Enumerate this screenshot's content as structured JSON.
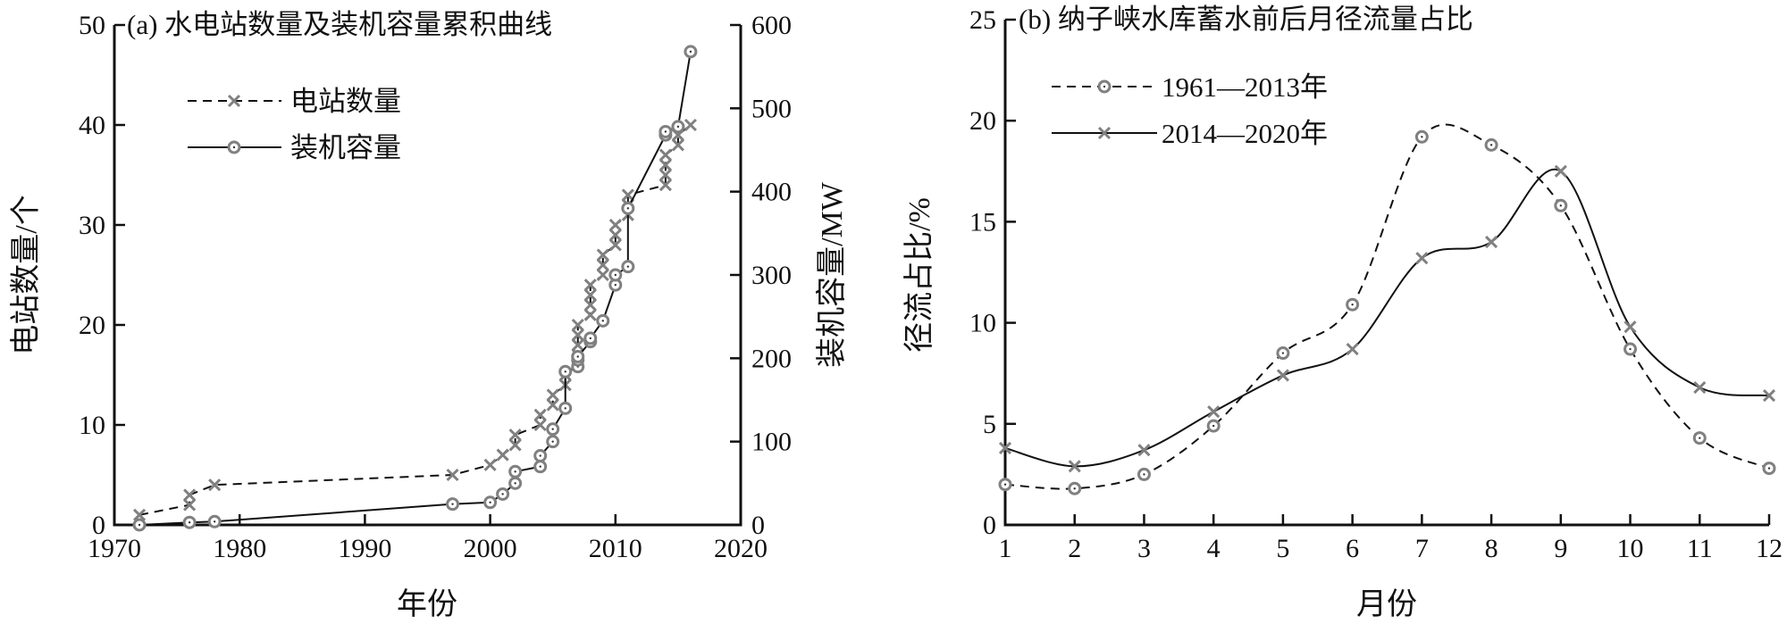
{
  "chart_data": [
    {
      "type": "line",
      "title": "(a) 水电站数量及装机容量累积曲线",
      "xlabel": "年份",
      "ylabel": "电站数量/个",
      "y2label": "装机容量/MW",
      "xlim": [
        1970,
        2020
      ],
      "ylim": [
        0,
        50
      ],
      "y2lim": [
        0,
        600
      ],
      "xticks": [
        "1970",
        "1980",
        "1990",
        "2000",
        "2010",
        "2020"
      ],
      "yticks": [
        "0",
        "10",
        "20",
        "30",
        "40",
        "50"
      ],
      "y2ticks": [
        "0",
        "100",
        "200",
        "300",
        "400",
        "500",
        "600"
      ],
      "legend_position": "top-left",
      "series": [
        {
          "name": "电站数量",
          "axis": "left",
          "style": "dashed",
          "marker": "x",
          "points": [
            [
              1972,
              1
            ],
            [
              1976,
              2
            ],
            [
              1976,
              3
            ],
            [
              1978,
              4
            ],
            [
              1997,
              5
            ],
            [
              2000,
              6
            ],
            [
              2001,
              7
            ],
            [
              2002,
              8
            ],
            [
              2002,
              9
            ],
            [
              2004,
              10
            ],
            [
              2004,
              11
            ],
            [
              2005,
              12
            ],
            [
              2005,
              13
            ],
            [
              2006,
              14
            ],
            [
              2006,
              15
            ],
            [
              2007,
              16
            ],
            [
              2007,
              17
            ],
            [
              2007,
              18
            ],
            [
              2007,
              19
            ],
            [
              2007,
              20
            ],
            [
              2008,
              21
            ],
            [
              2008,
              22
            ],
            [
              2008,
              23
            ],
            [
              2008,
              24
            ],
            [
              2009,
              25
            ],
            [
              2009,
              26
            ],
            [
              2009,
              27
            ],
            [
              2010,
              28
            ],
            [
              2010,
              29
            ],
            [
              2010,
              30
            ],
            [
              2011,
              31
            ],
            [
              2011,
              32
            ],
            [
              2011,
              33
            ],
            [
              2014,
              34
            ],
            [
              2014,
              35
            ],
            [
              2014,
              36
            ],
            [
              2014,
              37
            ],
            [
              2015,
              38
            ],
            [
              2015,
              39
            ],
            [
              2016,
              40
            ]
          ]
        },
        {
          "name": "装机容量",
          "axis": "right",
          "style": "solid",
          "marker": "o",
          "points": [
            [
              1972,
              0
            ],
            [
              1976,
              3
            ],
            [
              1978,
              4
            ],
            [
              1997,
              25
            ],
            [
              2000,
              27
            ],
            [
              2001,
              37
            ],
            [
              2002,
              50
            ],
            [
              2002,
              64
            ],
            [
              2004,
              70
            ],
            [
              2004,
              83
            ],
            [
              2005,
              100
            ],
            [
              2005,
              115
            ],
            [
              2006,
              140
            ],
            [
              2006,
              184
            ],
            [
              2007,
              190
            ],
            [
              2007,
              198
            ],
            [
              2007,
              202
            ],
            [
              2008,
              220
            ],
            [
              2008,
              224
            ],
            [
              2009,
              245
            ],
            [
              2010,
              288
            ],
            [
              2010,
              300
            ],
            [
              2011,
              310
            ],
            [
              2011,
              380
            ],
            [
              2014,
              468
            ],
            [
              2014,
              472
            ],
            [
              2015,
              478
            ],
            [
              2016,
              568
            ]
          ]
        }
      ]
    },
    {
      "type": "line",
      "title": "(b) 纳子峡水库蓄水前后月径流量占比",
      "xlabel": "月份",
      "ylabel": "径流占比/%",
      "xlim": [
        1,
        12
      ],
      "ylim": [
        0,
        25
      ],
      "xticks": [
        "1",
        "2",
        "3",
        "4",
        "5",
        "6",
        "7",
        "8",
        "9",
        "10",
        "11",
        "12"
      ],
      "yticks": [
        "0",
        "5",
        "10",
        "15",
        "20",
        "25"
      ],
      "legend_position": "top-left",
      "x": [
        1,
        2,
        3,
        4,
        5,
        6,
        7,
        8,
        9,
        10,
        11,
        12
      ],
      "series": [
        {
          "name": "1961—2013年",
          "style": "dashed",
          "marker": "o",
          "values": [
            2.0,
            1.8,
            2.5,
            4.9,
            8.5,
            10.9,
            19.2,
            18.8,
            15.8,
            8.7,
            4.3,
            2.8
          ]
        },
        {
          "name": "2014—2020年",
          "style": "solid",
          "marker": "x",
          "values": [
            3.8,
            2.9,
            3.7,
            5.6,
            7.4,
            8.7,
            13.2,
            14.0,
            17.5,
            9.8,
            6.8,
            6.4
          ]
        }
      ]
    }
  ],
  "colors": {
    "axis": "#111111",
    "marker": "#808080",
    "line": "#111111"
  }
}
